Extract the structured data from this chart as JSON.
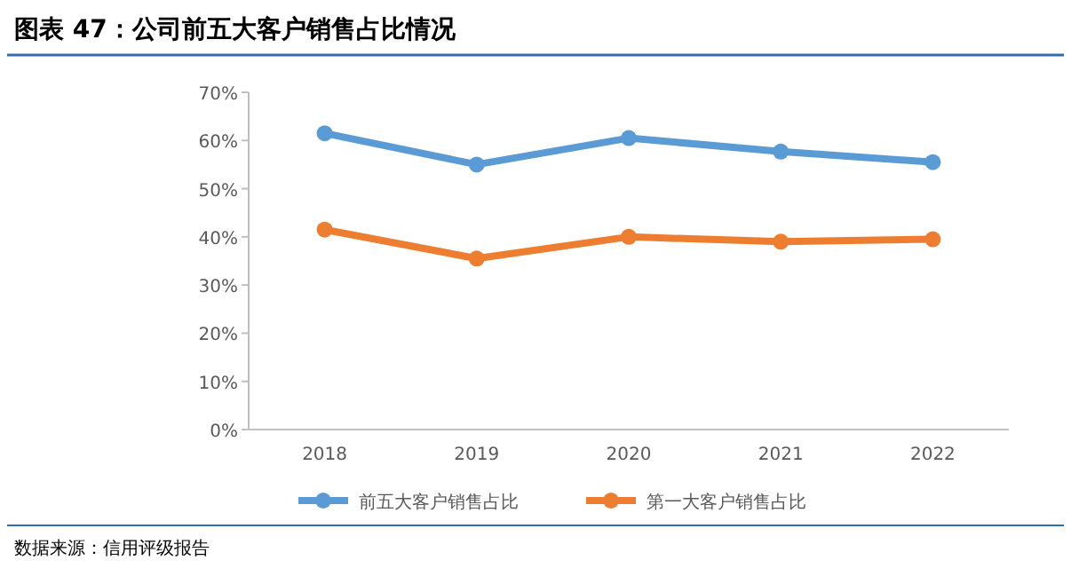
{
  "chart_data": {
    "type": "line",
    "title": "图表 47：公司前五大客户销售占比情况",
    "categories": [
      "2018",
      "2019",
      "2020",
      "2021",
      "2022"
    ],
    "series": [
      {
        "name": "前五大客户销售占比",
        "color": "#5b9bd5",
        "values": [
          61.5,
          55,
          60.5,
          57.7,
          55.5
        ]
      },
      {
        "name": "第一大客户销售占比",
        "color": "#ed7d31",
        "values": [
          41.5,
          35.5,
          40,
          39,
          39.5
        ]
      }
    ],
    "ylim": [
      0,
      70
    ],
    "yticks": [
      {
        "value": 0,
        "label": "0%"
      },
      {
        "value": 10,
        "label": "10%"
      },
      {
        "value": 20,
        "label": "20%"
      },
      {
        "value": 30,
        "label": "30%"
      },
      {
        "value": 40,
        "label": "40%"
      },
      {
        "value": 50,
        "label": "50%"
      },
      {
        "value": 60,
        "label": "60%"
      },
      {
        "value": 70,
        "label": "70%"
      }
    ],
    "marker": "circle",
    "line_style": "solid",
    "grid": false,
    "legend": "bottom",
    "annotations": [
      "数据来源：信用评级报告"
    ]
  }
}
